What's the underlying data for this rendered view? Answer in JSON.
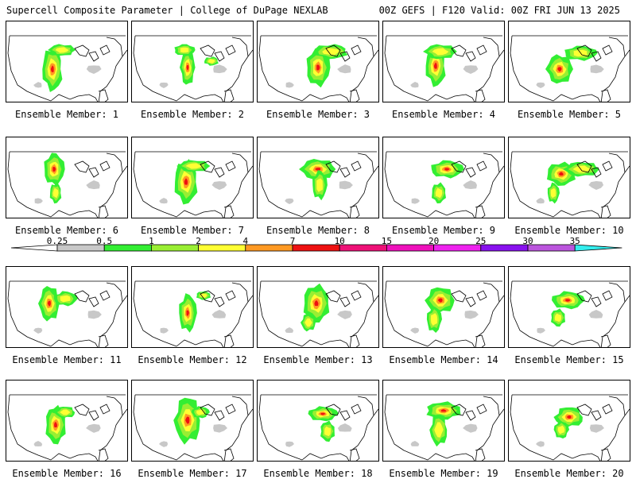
{
  "header": {
    "left_title": "Supercell Composite Parameter | College of DuPage NEXLAB",
    "right_title": "00Z GEFS | F120 Valid: 00Z FRI JUN 13 2025"
  },
  "panels": [
    {
      "label": "Ensemble Member: 1"
    },
    {
      "label": "Ensemble Member: 2"
    },
    {
      "label": "Ensemble Member: 3"
    },
    {
      "label": "Ensemble Member: 4"
    },
    {
      "label": "Ensemble Member: 5"
    },
    {
      "label": "Ensemble Member: 6"
    },
    {
      "label": "Ensemble Member: 7"
    },
    {
      "label": "Ensemble Member: 8"
    },
    {
      "label": "Ensemble Member: 9"
    },
    {
      "label": "Ensemble Member: 10"
    },
    {
      "label": "Ensemble Member: 11"
    },
    {
      "label": "Ensemble Member: 12"
    },
    {
      "label": "Ensemble Member: 13"
    },
    {
      "label": "Ensemble Member: 14"
    },
    {
      "label": "Ensemble Member: 15"
    },
    {
      "label": "Ensemble Member: 16"
    },
    {
      "label": "Ensemble Member: 17"
    },
    {
      "label": "Ensemble Member: 18"
    },
    {
      "label": "Ensemble Member: 19"
    },
    {
      "label": "Ensemble Member: 20"
    }
  ],
  "colorbar": {
    "ticks": [
      "0.25",
      "0.5",
      "1",
      "2",
      "4",
      "7",
      "10",
      "15",
      "20",
      "25",
      "30",
      "35"
    ],
    "colors": [
      "#c8c8c8",
      "#33ee33",
      "#99ee33",
      "#ffff33",
      "#ff9922",
      "#ee1111",
      "#ee1177",
      "#ee11bb",
      "#ee22ee",
      "#8811ee",
      "#bb55dd",
      "#33eeee"
    ]
  }
}
